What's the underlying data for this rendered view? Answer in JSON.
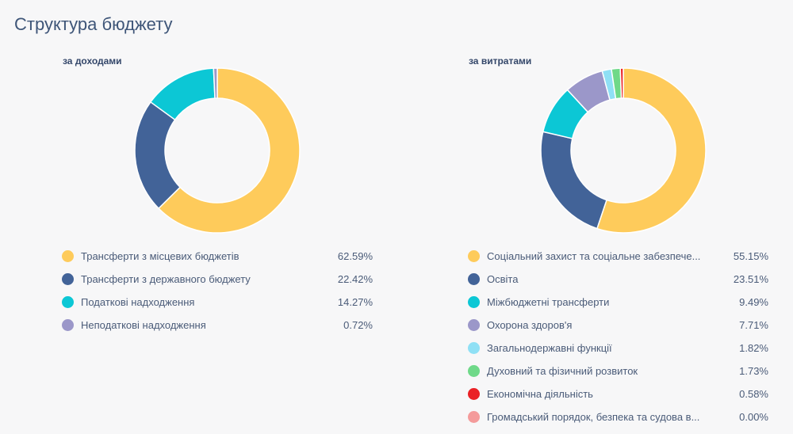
{
  "page": {
    "title": "Структура бюджету"
  },
  "chart_data": [
    {
      "type": "pie",
      "donut": true,
      "title": "за доходами",
      "legend_position": "bottom",
      "slices": [
        {
          "label": "Трансферти з місцевих бюджетів",
          "value": 62.59,
          "value_text": "62.59%",
          "color": "#fecb5b"
        },
        {
          "label": "Трансферти з державного бюджету",
          "value": 22.42,
          "value_text": "22.42%",
          "color": "#426398"
        },
        {
          "label": "Податкові надходження",
          "value": 14.27,
          "value_text": "14.27%",
          "color": "#0cc7d5"
        },
        {
          "label": "Неподаткові надходження",
          "value": 0.72,
          "value_text": "0.72%",
          "color": "#9b97c9"
        }
      ]
    },
    {
      "type": "pie",
      "donut": true,
      "title": "за витратами",
      "legend_position": "bottom",
      "slices": [
        {
          "label": "Соціальний захист та соціальне забезпече...",
          "value": 55.15,
          "value_text": "55.15%",
          "color": "#fecb5b"
        },
        {
          "label": "Освіта",
          "value": 23.51,
          "value_text": "23.51%",
          "color": "#426398"
        },
        {
          "label": "Міжбюджетні трансферти",
          "value": 9.49,
          "value_text": "9.49%",
          "color": "#0cc7d5"
        },
        {
          "label": "Охорона здоров'я",
          "value": 7.71,
          "value_text": "7.71%",
          "color": "#9b97c9"
        },
        {
          "label": "Загальнодержавні функції",
          "value": 1.82,
          "value_text": "1.82%",
          "color": "#8fe0f5"
        },
        {
          "label": "Духовний та фізичний розвиток",
          "value": 1.73,
          "value_text": "1.73%",
          "color": "#6fd989"
        },
        {
          "label": "Економічна діяльність",
          "value": 0.58,
          "value_text": "0.58%",
          "color": "#ea2125"
        },
        {
          "label": "Громадський порядок, безпека та судова в...",
          "value": 0.0,
          "value_text": "0.00%",
          "color": "#f49b9b"
        }
      ]
    }
  ]
}
